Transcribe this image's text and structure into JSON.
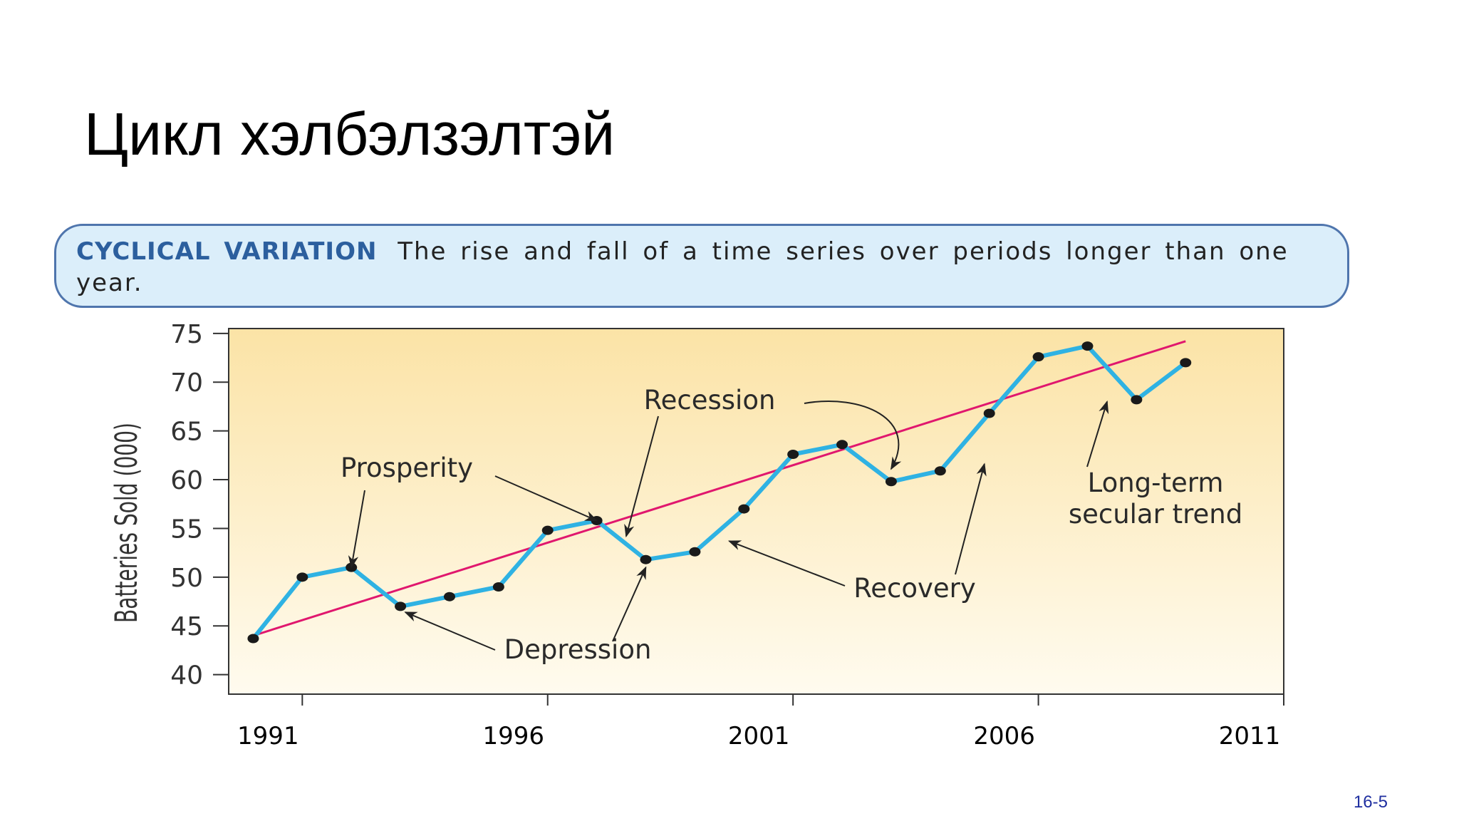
{
  "slide": {
    "title": "Цикл хэлбэлзэлтэй",
    "page_number": "16-5"
  },
  "definition": {
    "term": "CYCLICAL VARIATION",
    "text": "The rise and fall of a time series over periods longer than one year."
  },
  "colors": {
    "series_line": "#2fb2e3",
    "trend_line": "#e0176e",
    "marker": "#1a1a1a",
    "plot_bg_top": "#fbe3a6",
    "plot_bg_bottom": "#fffbef",
    "box_bg": "#dbeefa",
    "box_border": "#4f75ad",
    "term_color": "#2c5f9e",
    "page_number_color": "#1f2fa0"
  },
  "chart_data": {
    "type": "line",
    "ylabel": "Batteries Sold (000)",
    "xlabel": "",
    "ylim": [
      38,
      75.5
    ],
    "xlim": [
      1989.5,
      2011
    ],
    "yticks": [
      40,
      45,
      50,
      55,
      60,
      65,
      70,
      75
    ],
    "xticks": [
      1991,
      1996,
      2001,
      2006,
      2011
    ],
    "xtick_labels": [
      "1991",
      "1996",
      "2001",
      "2006",
      "2011"
    ],
    "series": [
      {
        "name": "Batteries sold",
        "x": [
          1990,
          1991,
          1992,
          1993,
          1994,
          1995,
          1996,
          1997,
          1998,
          1999,
          2000,
          2001,
          2002,
          2003,
          2004,
          2005,
          2006,
          2007,
          2008,
          2009
        ],
        "values": [
          43.7,
          50,
          51,
          47,
          48,
          49,
          54.8,
          55.8,
          51.8,
          52.6,
          57,
          62.6,
          63.6,
          59.8,
          60.9,
          66.8,
          72.6,
          73.7,
          68.2,
          72
        ]
      }
    ],
    "trend": {
      "name": "Long-term secular trend",
      "x": [
        1990,
        2009
      ],
      "values": [
        44,
        74.2
      ]
    },
    "annotations": [
      {
        "label": "Prosperity",
        "target": [
          1992,
          51
        ],
        "target2": [
          1997,
          55.8
        ]
      },
      {
        "label": "Recession",
        "target": [
          1997.6,
          54.2
        ],
        "target2": [
          2003,
          61.1
        ]
      },
      {
        "label": "Depression",
        "target": [
          1993.1,
          46.4
        ],
        "target2": [
          1998,
          51
        ]
      },
      {
        "label": "Recovery",
        "target": [
          1999.7,
          53.7
        ],
        "target2": [
          2004.9,
          61.6
        ]
      },
      {
        "label": "Long-term\nsecular trend",
        "target": [
          2007.4,
          68
        ]
      }
    ]
  }
}
